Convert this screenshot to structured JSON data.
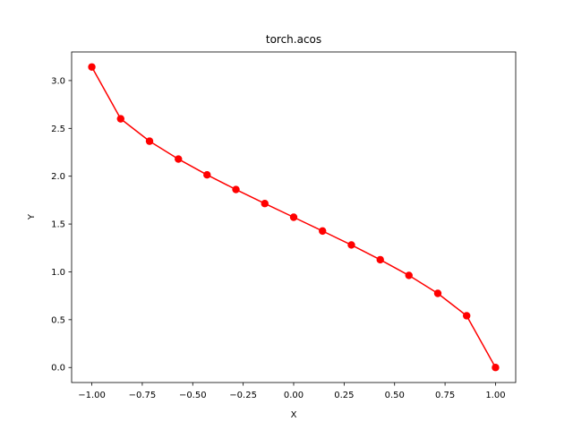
{
  "chart_data": {
    "type": "line",
    "title": "torch.acos",
    "xlabel": "X",
    "ylabel": "Y",
    "xlim": [
      -1.1,
      1.1
    ],
    "ylim": [
      -0.157,
      3.299
    ],
    "grid": false,
    "xticks": [
      -1.0,
      -0.75,
      -0.5,
      -0.25,
      0.0,
      0.25,
      0.5,
      0.75,
      1.0
    ],
    "xtick_labels": [
      "−1.00",
      "−0.75",
      "−0.50",
      "−0.25",
      "0.00",
      "0.25",
      "0.50",
      "0.75",
      "1.00"
    ],
    "yticks": [
      0.0,
      0.5,
      1.0,
      1.5,
      2.0,
      2.5,
      3.0
    ],
    "ytick_labels": [
      "0.0",
      "0.5",
      "1.0",
      "1.5",
      "2.0",
      "2.5",
      "3.0"
    ],
    "series": [
      {
        "color": "#ff0000",
        "marker": "circle",
        "x": [
          -1.0,
          -0.857,
          -0.714,
          -0.571,
          -0.429,
          -0.286,
          -0.143,
          0.0,
          0.143,
          0.286,
          0.429,
          0.571,
          0.714,
          0.857,
          1.0
        ],
        "y": [
          3.142,
          2.6,
          2.366,
          2.179,
          2.014,
          1.861,
          1.714,
          1.571,
          1.427,
          1.281,
          1.127,
          0.963,
          0.775,
          0.541,
          0.0
        ]
      }
    ]
  }
}
